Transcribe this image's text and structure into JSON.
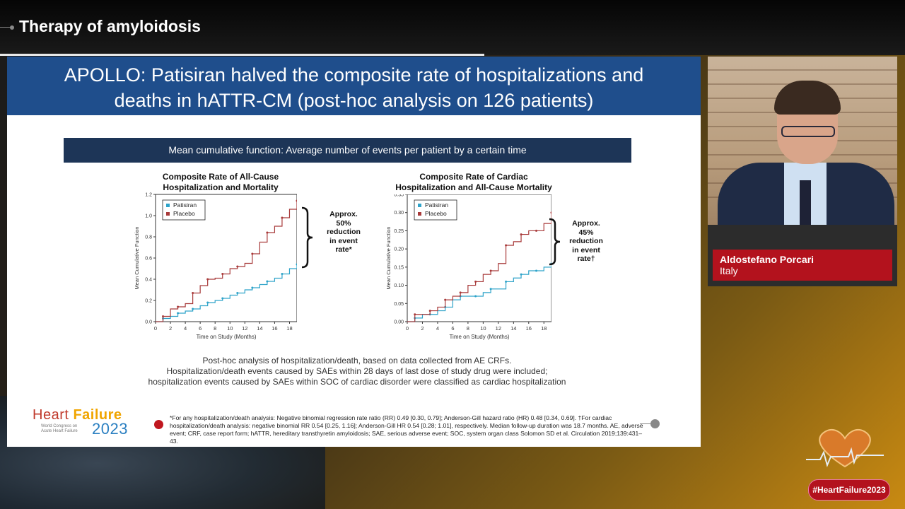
{
  "session": {
    "title": "Therapy of amyloidosis"
  },
  "slide": {
    "title_line1": "APOLLO: Patisiran halved the composite rate of hospitalizations and",
    "title_line2": "deaths in hATTR-CM (post-hoc analysis on 126 patients)",
    "band": "Mean cumulative function: Average number of events per patient by a certain time",
    "chart1_title_l1": "Composite Rate of All-Cause",
    "chart1_title_l2": "Hospitalization and Mortality",
    "chart2_title_l1": "Composite Rate of Cardiac",
    "chart2_title_l2": "Hospitalization and All-Cause Mortality",
    "note1": [
      "Approx.",
      "50%",
      "reduction",
      "in event",
      "rate*"
    ],
    "note2": [
      "Approx.",
      "45%",
      "reduction",
      "in event",
      "rate†"
    ],
    "caption_l1": "Post-hoc analysis of hospitalization/death, based on data collected from AE CRFs.",
    "caption_l2": "Hospitalization/death events caused by SAEs within 28 days of last dose of study drug were included;",
    "caption_l3": "hospitalization events caused by SAEs within SOC of cardiac disorder were classified as cardiac hospitalization",
    "footnote": "*For any hospitalization/death analysis: Negative binomial regression rate ratio (RR) 0.49 [0.30, 0.79]; Anderson-Gill hazard ratio (HR) 0.48 [0.34, 0.69]. †For cardiac hospitalization/death analysis: negative binomial RR 0.54 [0.25, 1.16]; Anderson-Gill HR 0.54 [0.28; 1.01], respectively. Median follow-up duration was 18.7 months. AE, adverse event; CRF, case report form; hATTR, hereditary transthyretin amyloidosis; SAE, serious adverse event; SOC, system organ class Solomon SD et al. Circulation 2019;139:431–43.",
    "logo_heart": "Heart",
    "logo_failure": "Failure",
    "logo_sub": "World Congress on Acute Heart Failure",
    "logo_year": "2023"
  },
  "speaker": {
    "name": "Aldostefano Porcari",
    "country": "Italy"
  },
  "hashtag": "#HeartFailure2023",
  "colors": {
    "patisiran": "#2ea3c9",
    "placebo": "#a83a3a",
    "header": "#1f4e8c",
    "band": "#1d3557",
    "accent": "#b3121d"
  },
  "chart_data": [
    {
      "type": "line",
      "title": "Composite Rate of All-Cause Hospitalization and Mortality",
      "xlabel": "Time on Study (Months)",
      "ylabel": "Mean Cumulative Function",
      "xlim": [
        0,
        19
      ],
      "ylim": [
        0,
        1.2
      ],
      "xticks": [
        0,
        2,
        4,
        6,
        8,
        10,
        12,
        14,
        16,
        18
      ],
      "yticks": [
        0.0,
        0.2,
        0.4,
        0.6,
        0.8,
        1.0,
        1.2
      ],
      "legend": "top-left",
      "series": [
        {
          "name": "Patisiran",
          "x": [
            0,
            1,
            2,
            3,
            4,
            5,
            6,
            7,
            8,
            9,
            10,
            11,
            12,
            13,
            14,
            15,
            16,
            17,
            18,
            19
          ],
          "y": [
            0.0,
            0.03,
            0.05,
            0.08,
            0.1,
            0.12,
            0.15,
            0.18,
            0.2,
            0.22,
            0.25,
            0.27,
            0.3,
            0.32,
            0.35,
            0.38,
            0.41,
            0.45,
            0.5,
            0.54
          ]
        },
        {
          "name": "Placebo",
          "x": [
            0,
            1,
            2,
            3,
            4,
            5,
            6,
            7,
            8,
            9,
            10,
            11,
            12,
            13,
            14,
            15,
            16,
            17,
            18,
            19
          ],
          "y": [
            0.0,
            0.05,
            0.12,
            0.14,
            0.17,
            0.27,
            0.34,
            0.4,
            0.41,
            0.45,
            0.5,
            0.52,
            0.55,
            0.64,
            0.75,
            0.84,
            0.9,
            0.98,
            1.06,
            1.14
          ]
        }
      ]
    },
    {
      "type": "line",
      "title": "Composite Rate of Cardiac Hospitalization and All-Cause Mortality",
      "xlabel": "Time on Study (Months)",
      "ylabel": "Mean Cumulative Function",
      "xlim": [
        0,
        19
      ],
      "ylim": [
        0,
        0.35
      ],
      "xticks": [
        0,
        2,
        4,
        6,
        8,
        10,
        12,
        14,
        16,
        18
      ],
      "yticks": [
        0.0,
        0.05,
        0.1,
        0.15,
        0.2,
        0.25,
        0.3,
        0.35
      ],
      "legend": "top-left",
      "series": [
        {
          "name": "Patisiran",
          "x": [
            0,
            1,
            2,
            3,
            4,
            5,
            6,
            7,
            8,
            9,
            10,
            11,
            12,
            13,
            14,
            15,
            16,
            17,
            18,
            19
          ],
          "y": [
            0.0,
            0.01,
            0.02,
            0.02,
            0.03,
            0.04,
            0.06,
            0.07,
            0.07,
            0.07,
            0.08,
            0.09,
            0.09,
            0.11,
            0.12,
            0.13,
            0.14,
            0.14,
            0.15,
            0.16
          ]
        },
        {
          "name": "Placebo",
          "x": [
            0,
            1,
            2,
            3,
            4,
            5,
            6,
            7,
            8,
            9,
            10,
            11,
            12,
            13,
            14,
            15,
            16,
            17,
            18,
            19
          ],
          "y": [
            0.0,
            0.02,
            0.02,
            0.03,
            0.04,
            0.06,
            0.07,
            0.08,
            0.1,
            0.11,
            0.13,
            0.14,
            0.16,
            0.21,
            0.22,
            0.24,
            0.25,
            0.25,
            0.27,
            0.3
          ]
        }
      ]
    }
  ]
}
